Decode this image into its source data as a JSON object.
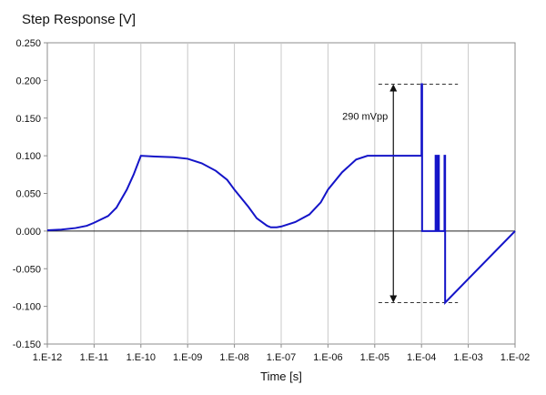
{
  "chart_data": {
    "type": "line",
    "title": "Step Response [V]",
    "xlabel": "Time [s]",
    "ylabel": "",
    "x_scale": "log",
    "xlim": [
      1e-12,
      0.01
    ],
    "ylim": [
      -0.15,
      0.25
    ],
    "x_ticks": [
      1e-12,
      1e-11,
      1e-10,
      1e-09,
      1e-08,
      1e-07,
      1e-06,
      1e-05,
      0.0001,
      0.001,
      0.01
    ],
    "x_tick_labels": [
      "1.E-12",
      "1.E-11",
      "1.E-10",
      "1.E-09",
      "1.E-08",
      "1.E-07",
      "1.E-06",
      "1.E-05",
      "1.E-04",
      "1.E-03",
      "1.E-02"
    ],
    "y_ticks": [
      -0.15,
      -0.1,
      -0.05,
      0.0,
      0.05,
      0.1,
      0.15,
      0.2,
      0.25
    ],
    "y_tick_labels": [
      "-0.150",
      "-0.100",
      "-0.050",
      "0.000",
      "0.050",
      "0.100",
      "0.150",
      "0.200",
      "0.250"
    ],
    "grid": "vertical",
    "line_color": "#1414c8",
    "series": [
      {
        "x": [
          1e-12,
          2e-12,
          4e-12,
          7e-12,
          1e-11,
          2e-11,
          3e-11,
          5e-11,
          7e-11,
          1e-10,
          2e-10,
          5e-10,
          1e-09,
          2e-09,
          4e-09,
          7e-09,
          1e-08,
          2e-08,
          3e-08,
          5e-08,
          6e-08,
          8e-08,
          1e-07,
          2e-07,
          4e-07,
          7e-07,
          1e-06,
          2e-06,
          4e-06,
          7e-06,
          1e-05,
          0.0001,
          0.0001,
          0.000103,
          0.000103,
          0.0002,
          0.0002,
          0.000215,
          0.000215,
          0.00023,
          0.00023,
          0.000235,
          0.000235,
          0.00031,
          0.00031,
          0.00032,
          0.00032,
          0.01
        ],
        "y": [
          0.001,
          0.002,
          0.004,
          0.007,
          0.011,
          0.02,
          0.031,
          0.055,
          0.075,
          0.1,
          0.099,
          0.098,
          0.096,
          0.09,
          0.08,
          0.068,
          0.055,
          0.032,
          0.017,
          0.007,
          0.005,
          0.005,
          0.006,
          0.012,
          0.022,
          0.038,
          0.055,
          0.078,
          0.095,
          0.1,
          0.1,
          0.1,
          0.195,
          0.195,
          0.0,
          0.0,
          0.1,
          0.1,
          0.0,
          0.0,
          0.1,
          0.1,
          0.0,
          0.0,
          0.1,
          0.1,
          -0.095,
          0.0
        ]
      }
    ],
    "annotation": {
      "text": "290 mVpp",
      "x": 2.5e-05,
      "y_top": 0.195,
      "y_bottom": -0.095,
      "line_x_from": 1.2e-05,
      "line_x_to": 0.0006
    }
  }
}
